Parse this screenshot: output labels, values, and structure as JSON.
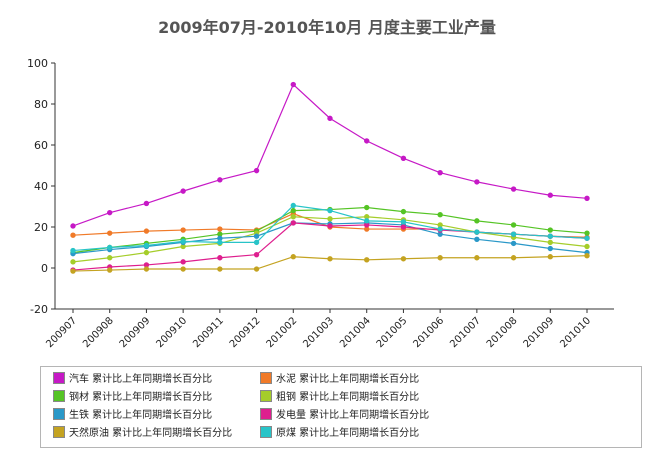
{
  "chart_data": {
    "type": "line",
    "title": "2009年07月-2010年10月 月度主要工业产量",
    "xlabel": "",
    "ylabel": "",
    "ylim": [
      -20,
      100
    ],
    "yticks": [
      -20,
      0,
      20,
      40,
      60,
      80,
      100
    ],
    "grid": false,
    "legend_position": "bottom",
    "categories": [
      "200907",
      "200908",
      "200909",
      "200910",
      "200911",
      "200912",
      "201002",
      "201003",
      "201004",
      "201005",
      "201006",
      "201007",
      "201008",
      "201009",
      "201010"
    ],
    "series": [
      {
        "name": "汽车 累计比上年同期增长百分比",
        "color": "#c619c6",
        "values": [
          20.5,
          27,
          31.5,
          37.5,
          43,
          47.5,
          89.5,
          73,
          62,
          53.5,
          46.5,
          42,
          38.5,
          35.5,
          34
        ]
      },
      {
        "name": "水泥 累计比上年同期增长百分比",
        "color": "#f07a28",
        "values": [
          16,
          17,
          18,
          18.5,
          19,
          18.5,
          26.5,
          20,
          19,
          19,
          19,
          17.5,
          16.5,
          15.5,
          15
        ]
      },
      {
        "name": "钢材 累计比上年同期增长百分比",
        "color": "#55c425",
        "values": [
          7.5,
          10,
          12,
          14,
          16.5,
          18,
          28,
          28.5,
          29.5,
          27.5,
          26,
          23,
          21,
          18.5,
          17
        ]
      },
      {
        "name": "粗钢 累计比上年同期增长百分比",
        "color": "#a5cd2a",
        "values": [
          3,
          5,
          7.5,
          10.5,
          12,
          17,
          25,
          24,
          25,
          23.5,
          21,
          17.5,
          15,
          12.5,
          10.5
        ]
      },
      {
        "name": "生铁 累计比上年同期增长百分比",
        "color": "#2a98c8",
        "values": [
          7,
          9,
          10.5,
          12.5,
          14.5,
          15.5,
          22,
          21.5,
          22,
          21,
          16.5,
          14,
          12,
          9.5,
          7.5
        ]
      },
      {
        "name": "发电量 累计比上年同期增长百分比",
        "color": "#de1f8e",
        "values": [
          -1,
          0.5,
          1.5,
          3,
          5,
          6.5,
          22,
          20.5,
          21,
          20,
          18.5,
          17.5,
          16.5,
          15.5,
          14.5
        ]
      },
      {
        "name": "天然原油 累计比上年同期增长百分比",
        "color": "#c4a321",
        "values": [
          -1.5,
          -1,
          -0.5,
          -0.5,
          -0.5,
          -0.5,
          5.5,
          4.5,
          4,
          4.5,
          5,
          5,
          5,
          5.5,
          6
        ]
      },
      {
        "name": "原煤 累计比上年同期增长百分比",
        "color": "#28c4c8",
        "values": [
          8.5,
          10,
          11,
          13,
          12.5,
          12.5,
          30.5,
          28,
          23,
          22.5,
          19,
          17.5,
          16.5,
          15.5,
          14.5
        ]
      }
    ]
  }
}
